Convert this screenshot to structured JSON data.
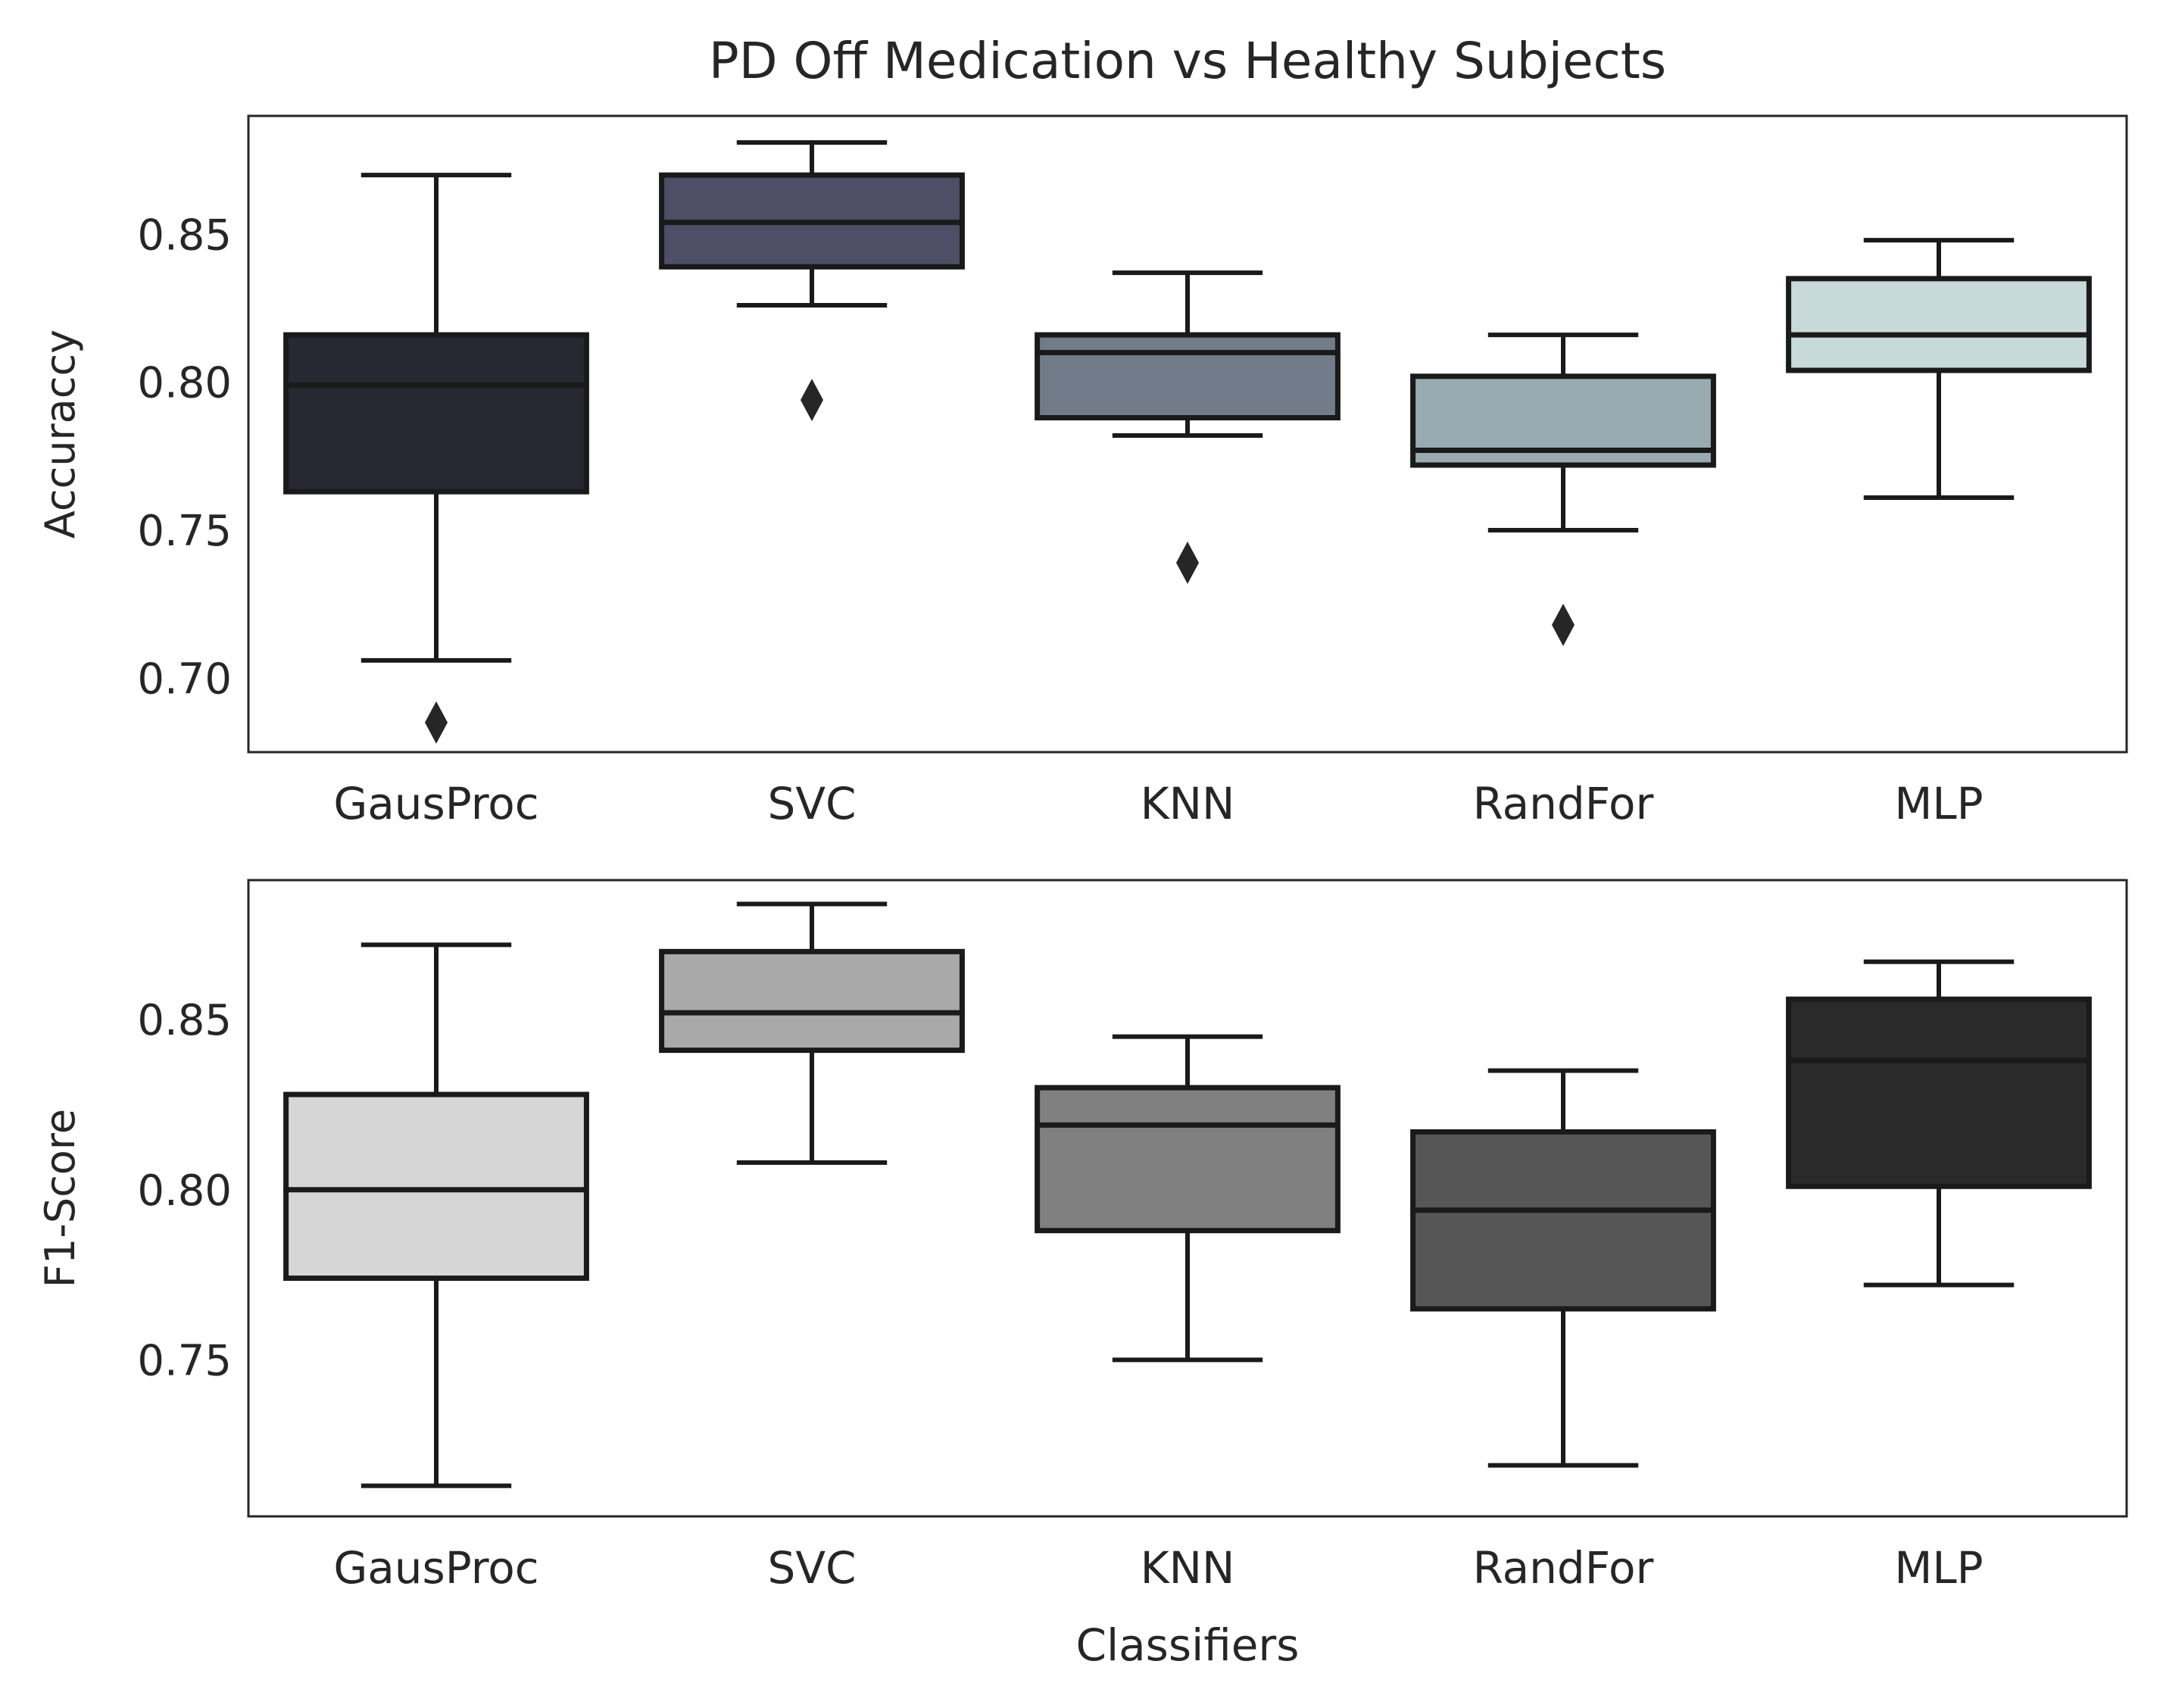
{
  "figure": {
    "title": "PD Off Medication vs Healthy Subjects",
    "xlabel": "Classifiers"
  },
  "chart_data": [
    {
      "type": "box",
      "ylabel": "Accuraccy",
      "ylim": [
        0.675,
        0.89
      ],
      "yticks": [
        0.7,
        0.75,
        0.8,
        0.85
      ],
      "ytick_labels": [
        "0.70",
        "0.75",
        "0.80",
        "0.85"
      ],
      "categories": [
        "GausProc",
        "SVC",
        "KNN",
        "RandFor",
        "MLP"
      ],
      "colors": [
        "#272832",
        "#4e4f66",
        "#727b8a",
        "#99abb0",
        "#c8d9d9"
      ],
      "boxes": [
        {
          "whislo": 0.706,
          "q1": 0.763,
          "median": 0.799,
          "q3": 0.816,
          "whishi": 0.87,
          "fliers": [
            0.685
          ]
        },
        {
          "whislo": 0.826,
          "q1": 0.839,
          "median": 0.854,
          "q3": 0.87,
          "whishi": 0.881,
          "fliers": [
            0.794
          ]
        },
        {
          "whislo": 0.782,
          "q1": 0.788,
          "median": 0.81,
          "q3": 0.816,
          "whishi": 0.837,
          "fliers": [
            0.739
          ]
        },
        {
          "whislo": 0.75,
          "q1": 0.772,
          "median": 0.777,
          "q3": 0.802,
          "whishi": 0.816,
          "fliers": [
            0.718
          ]
        },
        {
          "whislo": 0.761,
          "q1": 0.804,
          "median": 0.816,
          "q3": 0.835,
          "whishi": 0.848,
          "fliers": []
        }
      ]
    },
    {
      "type": "box",
      "ylabel": "F1-Score",
      "ylim": [
        0.704,
        0.891
      ],
      "yticks": [
        0.75,
        0.8,
        0.85
      ],
      "ytick_labels": [
        "0.75",
        "0.80",
        "0.85"
      ],
      "categories": [
        "GausProc",
        "SVC",
        "KNN",
        "RandFor",
        "MLP"
      ],
      "colors": [
        "#d6d6d6",
        "#a9a9a9",
        "#808080",
        "#565656",
        "#2a2a2a"
      ],
      "boxes": [
        {
          "whislo": 0.713,
          "q1": 0.774,
          "median": 0.8,
          "q3": 0.828,
          "whishi": 0.872,
          "fliers": []
        },
        {
          "whislo": 0.808,
          "q1": 0.841,
          "median": 0.852,
          "q3": 0.87,
          "whishi": 0.884,
          "fliers": []
        },
        {
          "whislo": 0.75,
          "q1": 0.788,
          "median": 0.819,
          "q3": 0.83,
          "whishi": 0.845,
          "fliers": []
        },
        {
          "whislo": 0.719,
          "q1": 0.765,
          "median": 0.794,
          "q3": 0.817,
          "whishi": 0.835,
          "fliers": []
        },
        {
          "whislo": 0.772,
          "q1": 0.801,
          "median": 0.838,
          "q3": 0.856,
          "whishi": 0.867,
          "fliers": []
        }
      ]
    }
  ]
}
